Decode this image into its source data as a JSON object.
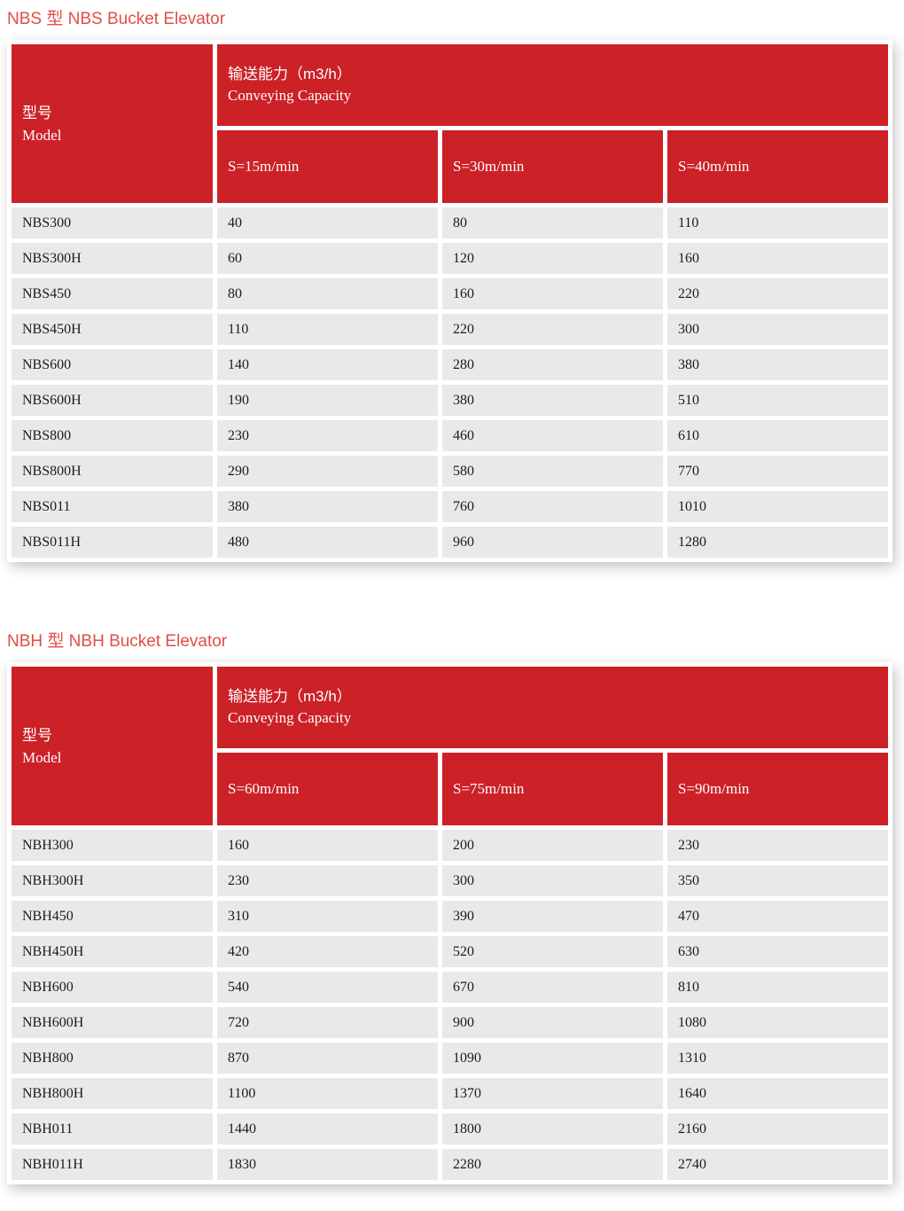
{
  "colors": {
    "header_red": "#cb2127",
    "title_red": "#e04e48",
    "row_gray": "#e9e9eb",
    "cell_text": "#1b1b1b",
    "header_text": "#ffffff",
    "page_bg": "#ffffff"
  },
  "tables": [
    {
      "title": "NBS 型 NBS Bucket Elevator",
      "model_header_zh": "型号",
      "model_header_en": "Model",
      "capacity_header_zh": "输送能力（m3/h）",
      "capacity_header_en": "Conveying Capacity",
      "speed_headers": [
        "S=15m/min",
        "S=30m/min",
        "S=40m/min"
      ],
      "rows": [
        {
          "model": "NBS300",
          "values": [
            "40",
            "80",
            "110"
          ]
        },
        {
          "model": "NBS300H",
          "values": [
            "60",
            "120",
            "160"
          ]
        },
        {
          "model": "NBS450",
          "values": [
            "80",
            "160",
            "220"
          ]
        },
        {
          "model": "NBS450H",
          "values": [
            "110",
            "220",
            "300"
          ]
        },
        {
          "model": "NBS600",
          "values": [
            "140",
            "280",
            "380"
          ]
        },
        {
          "model": "NBS600H",
          "values": [
            "190",
            "380",
            "510"
          ]
        },
        {
          "model": "NBS800",
          "values": [
            "230",
            "460",
            "610"
          ]
        },
        {
          "model": "NBS800H",
          "values": [
            "290",
            "580",
            "770"
          ]
        },
        {
          "model": "NBS011",
          "values": [
            "380",
            "760",
            "1010"
          ]
        },
        {
          "model": "NBS011H",
          "values": [
            "480",
            "960",
            "1280"
          ]
        }
      ]
    },
    {
      "title": "NBH 型 NBH Bucket Elevator",
      "model_header_zh": "型号",
      "model_header_en": "Model",
      "capacity_header_zh": "输送能力（m3/h）",
      "capacity_header_en": "Conveying Capacity",
      "speed_headers": [
        "S=60m/min",
        "S=75m/min",
        "S=90m/min"
      ],
      "rows": [
        {
          "model": "NBH300",
          "values": [
            "160",
            "200",
            "230"
          ]
        },
        {
          "model": "NBH300H",
          "values": [
            "230",
            "300",
            "350"
          ]
        },
        {
          "model": "NBH450",
          "values": [
            "310",
            "390",
            "470"
          ]
        },
        {
          "model": "NBH450H",
          "values": [
            "420",
            "520",
            "630"
          ]
        },
        {
          "model": "NBH600",
          "values": [
            "540",
            "670",
            "810"
          ]
        },
        {
          "model": "NBH600H",
          "values": [
            "720",
            "900",
            "1080"
          ]
        },
        {
          "model": "NBH800",
          "values": [
            "870",
            "1090",
            "1310"
          ]
        },
        {
          "model": "NBH800H",
          "values": [
            "1100",
            "1370",
            "1640"
          ]
        },
        {
          "model": "NBH011",
          "values": [
            "1440",
            "1800",
            "2160"
          ]
        },
        {
          "model": "NBH011H",
          "values": [
            "1830",
            "2280",
            "2740"
          ]
        }
      ]
    }
  ]
}
